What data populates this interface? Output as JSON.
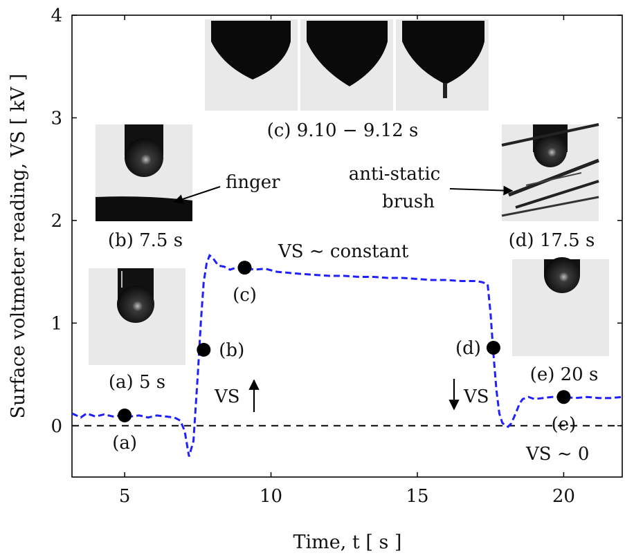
{
  "chart_data": {
    "type": "line",
    "xlabel": "Time, t [ s ]",
    "ylabel": "Surface voltmeter reading, VS [ kV ]",
    "xlim": [
      3.2,
      22
    ],
    "ylim": [
      -0.5,
      4
    ],
    "xticks": [
      5,
      10,
      15,
      20
    ],
    "yticks": [
      0,
      1,
      2,
      3,
      4
    ],
    "xtick_labels": [
      "5",
      "10",
      "15",
      "20"
    ],
    "ytick_labels": [
      "0",
      "1",
      "2",
      "3",
      "4"
    ],
    "reference_line": {
      "y": 0,
      "style": "dashed",
      "color": "#000000"
    },
    "series": [
      {
        "style": "dashed",
        "color": "#1f1fff",
        "x": [
          3.2,
          3.5,
          3.7,
          4.0,
          4.3,
          4.6,
          4.9,
          5.2,
          5.5,
          5.8,
          6.1,
          6.4,
          6.7,
          6.9,
          7.05,
          7.2,
          7.35,
          7.5,
          7.6,
          7.7,
          7.8,
          7.9,
          8.0,
          8.1,
          8.2,
          8.4,
          8.6,
          8.8,
          9.1,
          9.4,
          9.8,
          10.2,
          10.6,
          11.0,
          11.5,
          12.0,
          12.5,
          13.0,
          13.5,
          14.0,
          14.5,
          15.0,
          15.5,
          16.0,
          16.5,
          17.0,
          17.2,
          17.4,
          17.5,
          17.6,
          17.7,
          17.8,
          17.9,
          18.0,
          18.1,
          18.2,
          18.3,
          18.4,
          18.5,
          18.6,
          18.8,
          19.0,
          19.3,
          19.6,
          20.0,
          20.4,
          20.8,
          21.2,
          21.6,
          22.0
        ],
        "y": [
          0.12,
          0.08,
          0.12,
          0.09,
          0.11,
          0.09,
          0.1,
          0.09,
          0.1,
          0.08,
          0.1,
          0.09,
          0.08,
          0.05,
          -0.05,
          -0.3,
          -0.15,
          0.5,
          1.0,
          1.4,
          1.58,
          1.66,
          1.64,
          1.6,
          1.56,
          1.55,
          1.52,
          1.54,
          1.55,
          1.52,
          1.53,
          1.5,
          1.49,
          1.48,
          1.47,
          1.46,
          1.46,
          1.45,
          1.45,
          1.44,
          1.44,
          1.43,
          1.42,
          1.42,
          1.41,
          1.41,
          1.4,
          1.38,
          1.1,
          0.7,
          0.35,
          0.12,
          0.03,
          0.0,
          -0.01,
          0.02,
          0.08,
          0.15,
          0.22,
          0.26,
          0.28,
          0.26,
          0.27,
          0.28,
          0.28,
          0.27,
          0.28,
          0.27,
          0.27,
          0.28
        ]
      }
    ],
    "points": [
      {
        "x": 5.0,
        "y": 0.1,
        "label": "(a)",
        "label_pos": "below"
      },
      {
        "x": 7.7,
        "y": 0.74,
        "label": "(b)",
        "label_pos": "right"
      },
      {
        "x": 9.1,
        "y": 1.54,
        "label": "(c)",
        "label_pos": "below"
      },
      {
        "x": 17.6,
        "y": 0.76,
        "label": "(d)",
        "label_pos": "left"
      },
      {
        "x": 20.0,
        "y": 0.28,
        "label": "(e)",
        "label_pos": "below"
      }
    ],
    "annotations": {
      "vs_constant": "VS ∼ constant",
      "vs_zero": "VS ∼ 0",
      "vs_up": "VS",
      "vs_down": "VS",
      "finger": "finger",
      "brush_line1": "anti-static",
      "brush_line2": "brush"
    },
    "insets": [
      {
        "id": "a",
        "caption": "(a) 5 s"
      },
      {
        "id": "b",
        "caption": "(b) 7.5 s"
      },
      {
        "id": "c",
        "caption": "(c) 9.10 − 9.12 s"
      },
      {
        "id": "d",
        "caption": "(d) 17.5 s"
      },
      {
        "id": "e",
        "caption": "(e) 20 s"
      }
    ]
  }
}
